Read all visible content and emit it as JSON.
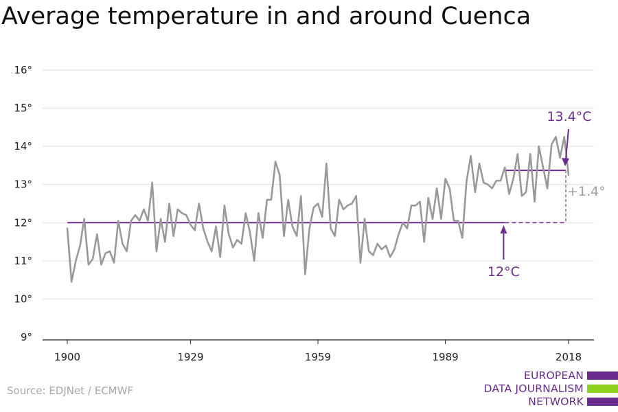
{
  "title": "Average temperature in and around Cuenca",
  "source": "Source: EDJNet / ECMWF",
  "logo": {
    "lines": [
      "EUROPEAN",
      "DATA JOURNALISM",
      "NETWORK"
    ],
    "colors": [
      "#6b2c8f",
      "#8ed11f",
      "#6b2c8f"
    ]
  },
  "chart_data": {
    "type": "line",
    "title": "Average temperature in and around Cuenca",
    "xlabel": "",
    "ylabel": "",
    "xlim": [
      1900,
      2018
    ],
    "ylim": [
      9,
      16
    ],
    "grid": true,
    "x_ticks": [
      1900,
      1929,
      1959,
      1989,
      2018
    ],
    "x_tick_labels": [
      "1900",
      "1929",
      "1959",
      "1989",
      "2018"
    ],
    "y_ticks": [
      9,
      10,
      11,
      12,
      13,
      14,
      15,
      16
    ],
    "y_tick_labels": [
      "9°",
      "10°",
      "11°",
      "12°",
      "13°",
      "14°",
      "15°",
      "16°"
    ],
    "series": [
      {
        "color": "#999999",
        "x": [
          1900,
          1901,
          1902,
          1903,
          1904,
          1905,
          1906,
          1907,
          1908,
          1909,
          1910,
          1911,
          1912,
          1913,
          1914,
          1915,
          1916,
          1917,
          1918,
          1919,
          1920,
          1921,
          1922,
          1923,
          1924,
          1925,
          1926,
          1927,
          1928,
          1929,
          1930,
          1931,
          1932,
          1933,
          1934,
          1935,
          1936,
          1937,
          1938,
          1939,
          1940,
          1941,
          1942,
          1943,
          1944,
          1945,
          1946,
          1947,
          1948,
          1949,
          1950,
          1951,
          1952,
          1953,
          1954,
          1955,
          1956,
          1957,
          1958,
          1959,
          1960,
          1961,
          1962,
          1963,
          1964,
          1965,
          1966,
          1967,
          1968,
          1969,
          1970,
          1971,
          1972,
          1973,
          1974,
          1975,
          1976,
          1977,
          1978,
          1979,
          1980,
          1981,
          1982,
          1983,
          1984,
          1985,
          1986,
          1987,
          1988,
          1989,
          1990,
          1991,
          1992,
          1993,
          1994,
          1995,
          1996,
          1997,
          1998,
          1999,
          2000,
          2001,
          2002,
          2003,
          2004,
          2005,
          2006,
          2007,
          2008,
          2009,
          2010,
          2011,
          2012,
          2013,
          2014,
          2015,
          2016,
          2017,
          2018
        ],
        "values": [
          11.85,
          10.45,
          11.0,
          11.4,
          12.1,
          10.9,
          11.05,
          11.7,
          10.9,
          11.2,
          11.25,
          10.95,
          12.05,
          11.45,
          11.25,
          12.05,
          12.2,
          12.05,
          12.35,
          12.05,
          13.05,
          11.25,
          12.1,
          11.5,
          12.5,
          11.65,
          12.35,
          12.25,
          12.2,
          11.95,
          11.8,
          12.5,
          11.85,
          11.5,
          11.25,
          11.9,
          11.1,
          12.45,
          11.7,
          11.35,
          11.55,
          11.45,
          12.25,
          11.75,
          11.0,
          12.25,
          11.6,
          12.6,
          12.6,
          13.6,
          13.25,
          11.65,
          12.6,
          11.9,
          11.65,
          12.7,
          10.65,
          11.85,
          12.4,
          12.5,
          12.15,
          13.55,
          11.85,
          11.65,
          12.6,
          12.35,
          12.45,
          12.5,
          12.7,
          10.95,
          12.1,
          11.25,
          11.15,
          11.45,
          11.3,
          11.4,
          11.1,
          11.3,
          11.7,
          12.0,
          11.85,
          12.45,
          12.45,
          12.55,
          11.5,
          12.65,
          12.1,
          12.9,
          12.1,
          13.15,
          12.9,
          12.05,
          12.05,
          11.6,
          13.1,
          13.75,
          12.8,
          13.55,
          13.05,
          13.0,
          12.9,
          13.1,
          13.1,
          13.45,
          12.75,
          13.15,
          13.8,
          12.7,
          12.8,
          13.8,
          12.55,
          14.0,
          13.45,
          12.9,
          14.05,
          14.25,
          13.7,
          14.25,
          13.25
        ]
      }
    ],
    "reference_lines": [
      {
        "label": "12°C",
        "value": 12.0,
        "from": 1900,
        "to": 2004,
        "color": "#6b2c8f"
      },
      {
        "label": "13.4°C",
        "value": 13.37,
        "from": 2004,
        "to": 2018,
        "color": "#6b2c8f"
      }
    ],
    "annotations": [
      {
        "text": "12°C",
        "color": "#6b2c8f"
      },
      {
        "text": "13.4°C",
        "color": "#6b2c8f"
      },
      {
        "text": "+1.4°",
        "color": "#a0a0a0"
      }
    ]
  }
}
